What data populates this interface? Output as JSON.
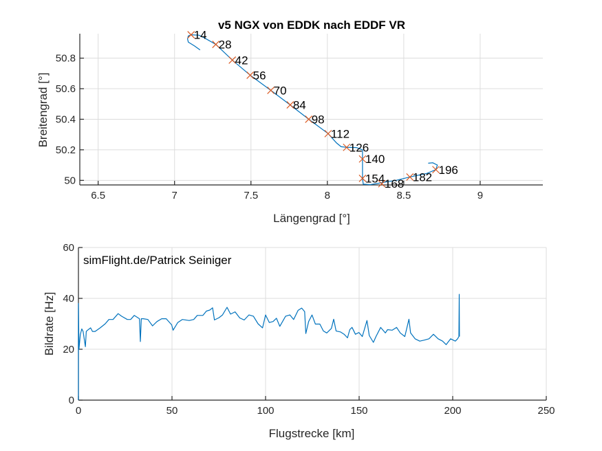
{
  "chart_data": [
    {
      "type": "line",
      "title": "v5 NGX von EDDK nach EDDF VR",
      "xlabel": "Längengrad [°]",
      "ylabel": "Breitengrad [°]",
      "xlim": [
        6.38,
        9.41
      ],
      "ylim": [
        49.97,
        50.96
      ],
      "xticks": [
        6.5,
        7,
        7.5,
        8,
        8.5,
        9
      ],
      "xtick_labels": [
        "6.5",
        "7",
        "7.5",
        "8",
        "8.5",
        "9"
      ],
      "yticks": [
        50,
        50.2,
        50.4,
        50.6,
        50.8
      ],
      "ytick_labels": [
        "50",
        "50.2",
        "50.4",
        "50.6",
        "50.8"
      ],
      "grid": true,
      "series_color": "#0072BD",
      "marker_color": "#D95319",
      "track": {
        "lon": [
          7.167,
          7.13,
          7.09,
          7.085,
          7.09,
          7.108,
          7.16,
          7.2,
          7.27,
          7.378,
          7.495,
          7.63,
          7.757,
          7.878,
          8.005,
          8.06,
          8.09,
          8.126,
          8.19,
          8.23,
          8.23,
          8.23,
          8.235,
          8.28,
          8.356,
          8.45,
          8.54,
          8.65,
          8.71,
          8.72,
          8.69,
          8.66
        ],
        "lat": [
          50.854,
          50.88,
          50.905,
          50.925,
          50.945,
          50.953,
          50.95,
          50.93,
          50.89,
          50.787,
          50.688,
          50.589,
          50.494,
          50.4,
          50.306,
          50.245,
          50.22,
          50.216,
          50.215,
          50.2,
          50.14,
          50.013,
          49.975,
          49.972,
          49.985,
          50.0,
          50.022,
          50.045,
          50.07,
          50.1,
          50.115,
          50.112
        ]
      },
      "markers": [
        {
          "label": "14",
          "lon": 7.108,
          "lat": 50.953
        },
        {
          "label": "28",
          "lon": 7.27,
          "lat": 50.89
        },
        {
          "label": "42",
          "lon": 7.378,
          "lat": 50.787
        },
        {
          "label": "56",
          "lon": 7.495,
          "lat": 50.688
        },
        {
          "label": "70",
          "lon": 7.63,
          "lat": 50.589
        },
        {
          "label": "84",
          "lon": 7.757,
          "lat": 50.494
        },
        {
          "label": "98",
          "lon": 7.878,
          "lat": 50.4
        },
        {
          "label": "112",
          "lon": 8.005,
          "lat": 50.306
        },
        {
          "label": "126",
          "lon": 8.126,
          "lat": 50.216
        },
        {
          "label": "140",
          "lon": 8.23,
          "lat": 50.14
        },
        {
          "label": "154",
          "lon": 8.23,
          "lat": 50.013
        },
        {
          "label": "168",
          "lon": 8.356,
          "lat": 49.978
        },
        {
          "label": "182",
          "lon": 8.54,
          "lat": 50.022
        },
        {
          "label": "196",
          "lon": 8.71,
          "lat": 50.07
        }
      ]
    },
    {
      "type": "line",
      "title": "",
      "annotation": "simFlight.de/Patrick Seiniger",
      "xlabel": "Flugstrecke [km]",
      "ylabel": "Bildrate [Hz]",
      "xlim": [
        0,
        250
      ],
      "ylim": [
        0,
        60
      ],
      "xticks": [
        0,
        50,
        100,
        150,
        200,
        250
      ],
      "xtick_labels": [
        "0",
        "50",
        "100",
        "150",
        "200",
        "250"
      ],
      "yticks": [
        0,
        20,
        40,
        60
      ],
      "ytick_labels": [
        "0",
        "20",
        "40",
        "60"
      ],
      "grid": true,
      "series_color": "#0072BD",
      "x": [
        0,
        0,
        0.3,
        1,
        1.8,
        2.5,
        3.7,
        4.2,
        4.9,
        6.5,
        7.5,
        8.9,
        11.6,
        14.3,
        16.3,
        18.5,
        21.2,
        23,
        26.1,
        27.9,
        29.8,
        32.6,
        33.1,
        33.6,
        34.7,
        37.1,
        39.6,
        42,
        44.5,
        46.9,
        49.8,
        50.6,
        53.1,
        55.5,
        59.2,
        61.6,
        63.5,
        66.5,
        68.4,
        70.2,
        71.7,
        72.7,
        75.1,
        77,
        79.4,
        81.3,
        83.7,
        86.2,
        88.6,
        91.1,
        93.5,
        96,
        98.4,
        100,
        102,
        104,
        105.8,
        107.6,
        110.7,
        113,
        115,
        117.4,
        119.3,
        120.9,
        121.5,
        123,
        124.8,
        126.6,
        129,
        130.9,
        132.7,
        135.2,
        136.4,
        137.7,
        140,
        142,
        143.8,
        145,
        146.2,
        148,
        149.9,
        151.7,
        154.2,
        155.4,
        157.6,
        159,
        161.5,
        164,
        165.2,
        167.7,
        170,
        172,
        174.4,
        176.6,
        177.5,
        179.9,
        182.4,
        184.8,
        187.3,
        189.7,
        192.2,
        194.6,
        196.5,
        198.9,
        201.4,
        202.6,
        203.3,
        203.5,
        203.6
      ],
      "y": [
        0,
        38,
        20,
        25.7,
        28,
        27,
        21,
        27,
        27.5,
        28.4,
        27,
        27,
        28.4,
        30,
        31.7,
        31.7,
        34,
        33,
        31.7,
        31.7,
        33.3,
        32,
        23,
        32,
        32,
        31.7,
        29.2,
        30.9,
        32,
        32,
        29.6,
        27.5,
        30.5,
        31.7,
        31.3,
        31.7,
        33.3,
        33.3,
        35,
        35.4,
        36.3,
        31.5,
        32.4,
        33.5,
        36.5,
        33.8,
        34.7,
        32.3,
        31.5,
        33.5,
        33,
        30,
        28.4,
        33.5,
        30.5,
        30.9,
        32.2,
        29,
        33,
        33.5,
        31.7,
        35.3,
        36.2,
        34.8,
        26.2,
        30.9,
        33.5,
        29.9,
        29.9,
        27.2,
        26.4,
        28.2,
        31.8,
        27.2,
        26.8,
        25.9,
        24.5,
        27.7,
        28.6,
        25.9,
        26.6,
        25,
        31.3,
        25.4,
        22.7,
        25,
        28.6,
        26.4,
        27.7,
        27.5,
        28.6,
        26.4,
        25,
        31.8,
        26.4,
        24.1,
        23.2,
        23.6,
        24.1,
        25.9,
        24.1,
        23.2,
        21.8,
        24.1,
        23.2,
        24.1,
        25,
        41.6,
        25
      ]
    }
  ]
}
